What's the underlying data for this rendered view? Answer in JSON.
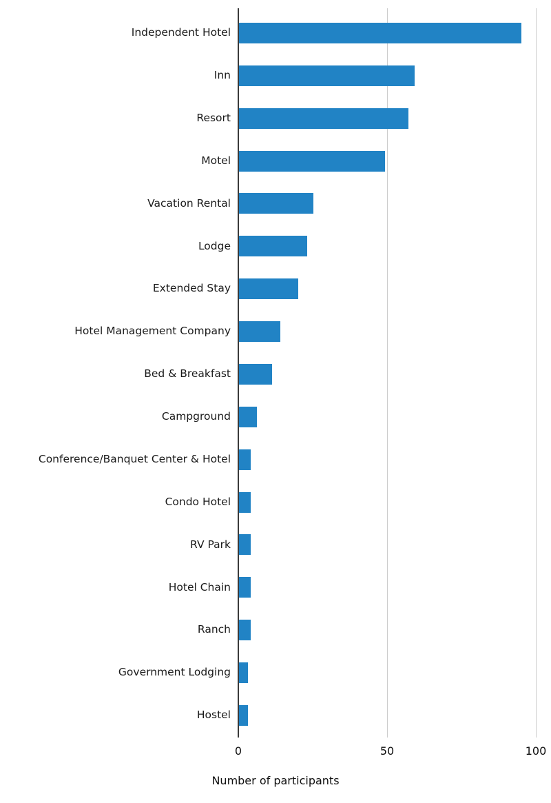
{
  "chart_data": {
    "type": "bar",
    "orientation": "horizontal",
    "title": "",
    "xlabel": "Number of participants",
    "ylabel": "",
    "categories": [
      "Independent Hotel",
      "Inn",
      "Resort",
      "Motel",
      "Vacation Rental",
      "Lodge",
      "Extended Stay",
      "Hotel Management Company",
      "Bed & Breakfast",
      "Campground",
      "Conference/Banquet Center & Hotel",
      "Condo Hotel",
      "RV Park",
      "Hotel Chain",
      "Ranch",
      "Government Lodging",
      "Hostel"
    ],
    "values": [
      95,
      59,
      57,
      49,
      25,
      23,
      20,
      14,
      11,
      6,
      4,
      4,
      4,
      4,
      4,
      3,
      3
    ],
    "xlim": [
      0,
      100
    ],
    "x_ticks": [
      0,
      50,
      100
    ],
    "x_tick_labels": [
      "0",
      "50",
      "100"
    ],
    "grid": true,
    "legend": false,
    "colors": {
      "bar": "#2183c5",
      "gridline": "#cccccc",
      "axis_line": "#3a3a3a",
      "text": "#1a1a1a"
    }
  }
}
